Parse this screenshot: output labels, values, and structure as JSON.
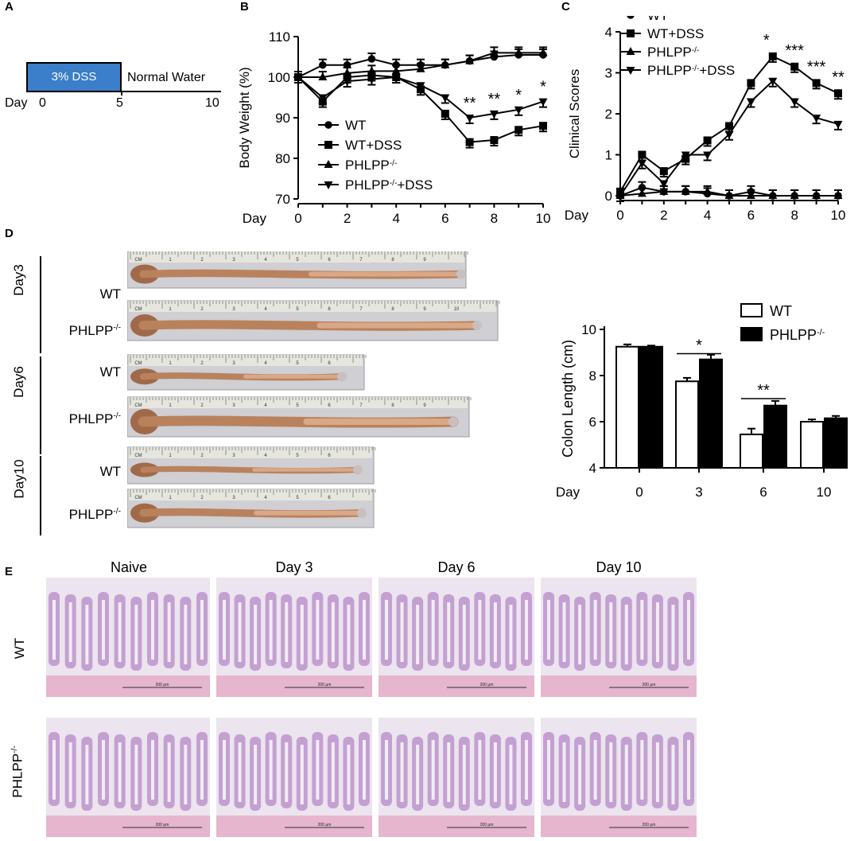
{
  "panels": {
    "A": {
      "letter": "A",
      "box_label": "3% DSS",
      "after_label": "Normal Water",
      "day_prefix": "Day",
      "ticks": [
        "0",
        "5",
        "10"
      ],
      "colors": {
        "dss_box": "#3b7ec9"
      }
    },
    "B": {
      "letter": "B"
    },
    "C": {
      "letter": "C"
    },
    "D": {
      "letter": "D",
      "groups": [
        {
          "day": "Day3",
          "rows": [
            "WT",
            "PHLPP-/-"
          ]
        },
        {
          "day": "Day6",
          "rows": [
            "WT",
            "PHLPP-/-"
          ]
        },
        {
          "day": "Day10",
          "rows": [
            "WT",
            "PHLPP-/-"
          ]
        }
      ],
      "ruler_labels": [
        "CM",
        "1",
        "2",
        "3",
        "4",
        "5",
        "6",
        "7",
        "8",
        "9",
        "10"
      ]
    },
    "E": {
      "letter": "E",
      "columns": [
        "Naive",
        "Day 3",
        "Day 6",
        "Day 10"
      ],
      "rows": [
        "WT",
        "PHLPP-/-"
      ],
      "scalebar": "200 μm"
    }
  },
  "chart_data": [
    {
      "id": "body-weight",
      "type": "line",
      "title": "",
      "ylabel": "Body Weight (%)",
      "xlabel": "Day",
      "ylim": [
        70,
        110
      ],
      "yticks": [
        70,
        80,
        90,
        100,
        110
      ],
      "x": [
        0,
        1,
        2,
        3,
        4,
        5,
        6,
        7,
        8,
        9,
        10
      ],
      "xticks": [
        0,
        2,
        4,
        6,
        8,
        10
      ],
      "series": [
        {
          "name": "WT",
          "marker": "circle",
          "values": [
            100,
            103,
            103,
            104.5,
            103,
            103,
            103,
            104,
            105,
            105.5,
            105.5
          ]
        },
        {
          "name": "WT+DSS",
          "marker": "square",
          "values": [
            100,
            94,
            100,
            100.5,
            100,
            97,
            91,
            84,
            84.5,
            87,
            88
          ]
        },
        {
          "name": "PHLPP-/-",
          "marker": "triangle-up",
          "values": [
            100,
            100,
            101,
            101.5,
            101.5,
            102,
            103,
            104,
            106,
            106,
            106
          ]
        },
        {
          "name": "PHLPP-/-+DSS",
          "marker": "triangle-down",
          "values": [
            100,
            95,
            99,
            99.5,
            100,
            98,
            95,
            90,
            91,
            92,
            94
          ]
        }
      ],
      "annotations": [
        {
          "x": 7,
          "text": "**"
        },
        {
          "x": 8,
          "text": "**"
        },
        {
          "x": 9,
          "text": "*"
        },
        {
          "x": 10,
          "text": "*"
        }
      ]
    },
    {
      "id": "clinical-scores",
      "type": "line",
      "title": "",
      "ylabel": "Clinical Scores",
      "xlabel": "Day",
      "ylim": [
        0,
        4
      ],
      "yticks": [
        0,
        1,
        2,
        3,
        4
      ],
      "x": [
        0,
        1,
        2,
        3,
        4,
        5,
        6,
        7,
        8,
        9,
        10
      ],
      "xticks": [
        0,
        2,
        4,
        6,
        8,
        10
      ],
      "series": [
        {
          "name": "WT",
          "marker": "circle",
          "values": [
            0,
            0.2,
            0.1,
            0.1,
            0.05,
            0,
            0.1,
            0,
            0,
            0,
            0
          ]
        },
        {
          "name": "WT+DSS",
          "marker": "square",
          "values": [
            0.1,
            1.0,
            0.6,
            0.9,
            1.35,
            1.7,
            2.75,
            3.4,
            3.15,
            2.75,
            2.5
          ]
        },
        {
          "name": "PHLPP-/-",
          "marker": "triangle-up",
          "values": [
            0,
            0.05,
            0.1,
            0.1,
            0.1,
            0,
            0,
            0,
            0,
            0,
            0
          ]
        },
        {
          "name": "PHLPP-/-+DSS",
          "marker": "triangle-down",
          "values": [
            0,
            0.8,
            0.3,
            1.0,
            1.0,
            1.5,
            2.3,
            2.8,
            2.3,
            1.9,
            1.75
          ]
        }
      ],
      "annotations": [
        {
          "x": 7,
          "text": "*"
        },
        {
          "x": 8,
          "text": "***"
        },
        {
          "x": 9,
          "text": "***"
        },
        {
          "x": 10,
          "text": "**"
        }
      ]
    },
    {
      "id": "colon-length",
      "type": "bar",
      "title": "",
      "ylabel": "Colon Length (cm)",
      "xlabel": "Day",
      "categories": [
        "0",
        "3",
        "6",
        "10"
      ],
      "ylim": [
        4,
        10
      ],
      "yticks": [
        4,
        6,
        8,
        10
      ],
      "series": [
        {
          "name": "WT",
          "fill": "#ffffff",
          "values": [
            9.25,
            7.75,
            5.45,
            6.0
          ],
          "errors": [
            0.1,
            0.15,
            0.25,
            0.1
          ]
        },
        {
          "name": "PHLPP-/-",
          "fill": "#000000",
          "values": [
            9.25,
            8.7,
            6.7,
            6.15
          ],
          "errors": [
            0.05,
            0.2,
            0.2,
            0.1
          ]
        }
      ],
      "annotations": [
        {
          "category": "3",
          "text": "*"
        },
        {
          "category": "6",
          "text": "**"
        }
      ]
    }
  ]
}
